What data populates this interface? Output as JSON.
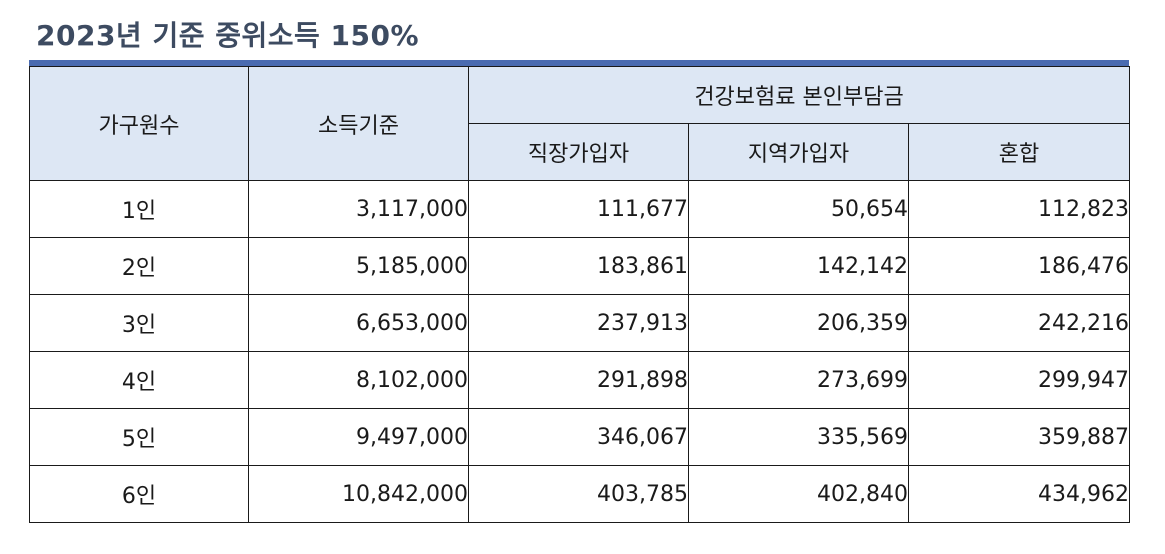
{
  "title": "2023년 기준 중위소득 150%",
  "header": {
    "household": "가구원수",
    "income": "소득기준",
    "premium_group": "건강보험료 본인부담금",
    "employee": "직장가입자",
    "regional": "지역가입자",
    "mixed": "혼합"
  },
  "rows": [
    {
      "household": "1인",
      "income": "3,117,000",
      "employee": "111,677",
      "regional": "50,654",
      "mixed": "112,823"
    },
    {
      "household": "2인",
      "income": "5,185,000",
      "employee": "183,861",
      "regional": "142,142",
      "mixed": "186,476"
    },
    {
      "household": "3인",
      "income": "6,653,000",
      "employee": "237,913",
      "regional": "206,359",
      "mixed": "242,216"
    },
    {
      "household": "4인",
      "income": "8,102,000",
      "employee": "291,898",
      "regional": "273,699",
      "mixed": "299,947"
    },
    {
      "household": "5인",
      "income": "9,497,000",
      "employee": "346,067",
      "regional": "335,569",
      "mixed": "359,887"
    },
    {
      "household": "6인",
      "income": "10,842,000",
      "employee": "403,785",
      "regional": "402,840",
      "mixed": "434,962"
    }
  ],
  "colors": {
    "title": "#3d4b61",
    "accent_bar": "#4a6bb0",
    "header_bg": "#dde7f4",
    "border": "#1a1a1a"
  }
}
